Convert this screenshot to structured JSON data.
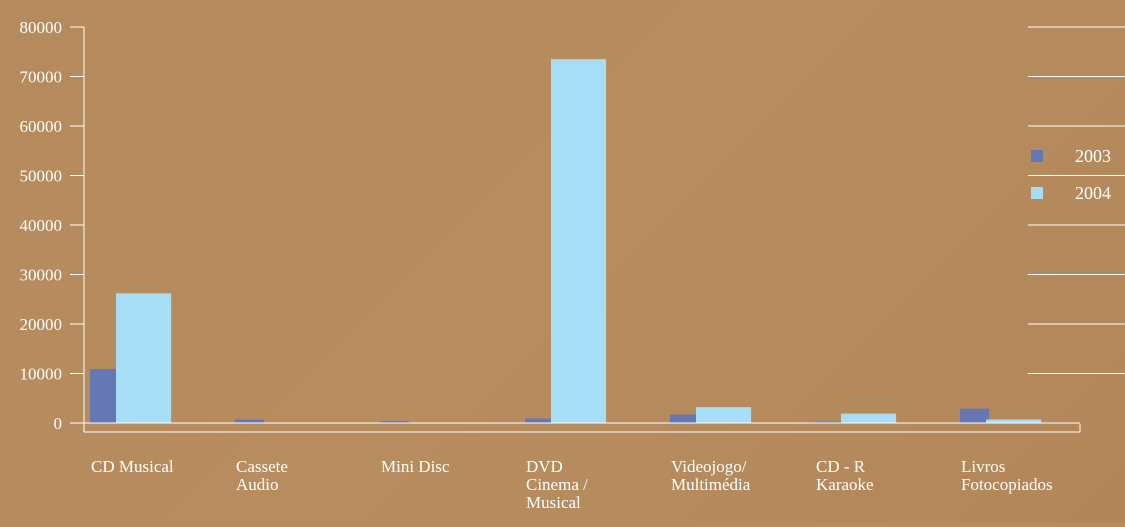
{
  "chart_data": {
    "type": "bar",
    "categories": [
      [
        "CD Musical"
      ],
      [
        "Cassete",
        "Audio"
      ],
      [
        "Mini Disc"
      ],
      [
        "DVD",
        "Cinema /",
        "Musical"
      ],
      [
        "Videojogo/",
        "Multimédia"
      ],
      [
        "CD - R",
        "Karaoke"
      ],
      [
        "Livros",
        "Fotocopiados"
      ]
    ],
    "series": [
      {
        "name": "2003",
        "color": "#6677b5",
        "values": [
          10900,
          700,
          200,
          900,
          1700,
          300,
          2900
        ]
      },
      {
        "name": "2004",
        "color": "#a6def5",
        "values": [
          26200,
          0,
          0,
          73500,
          3200,
          1900,
          700
        ]
      }
    ],
    "yticks": [
      "0",
      "10000",
      "20000",
      "30000",
      "40000",
      "50000",
      "60000",
      "70000",
      "80000"
    ],
    "ylim": [
      0,
      80000
    ],
    "legend_position": "right",
    "grid": true,
    "axis_color": "#ffffff"
  }
}
